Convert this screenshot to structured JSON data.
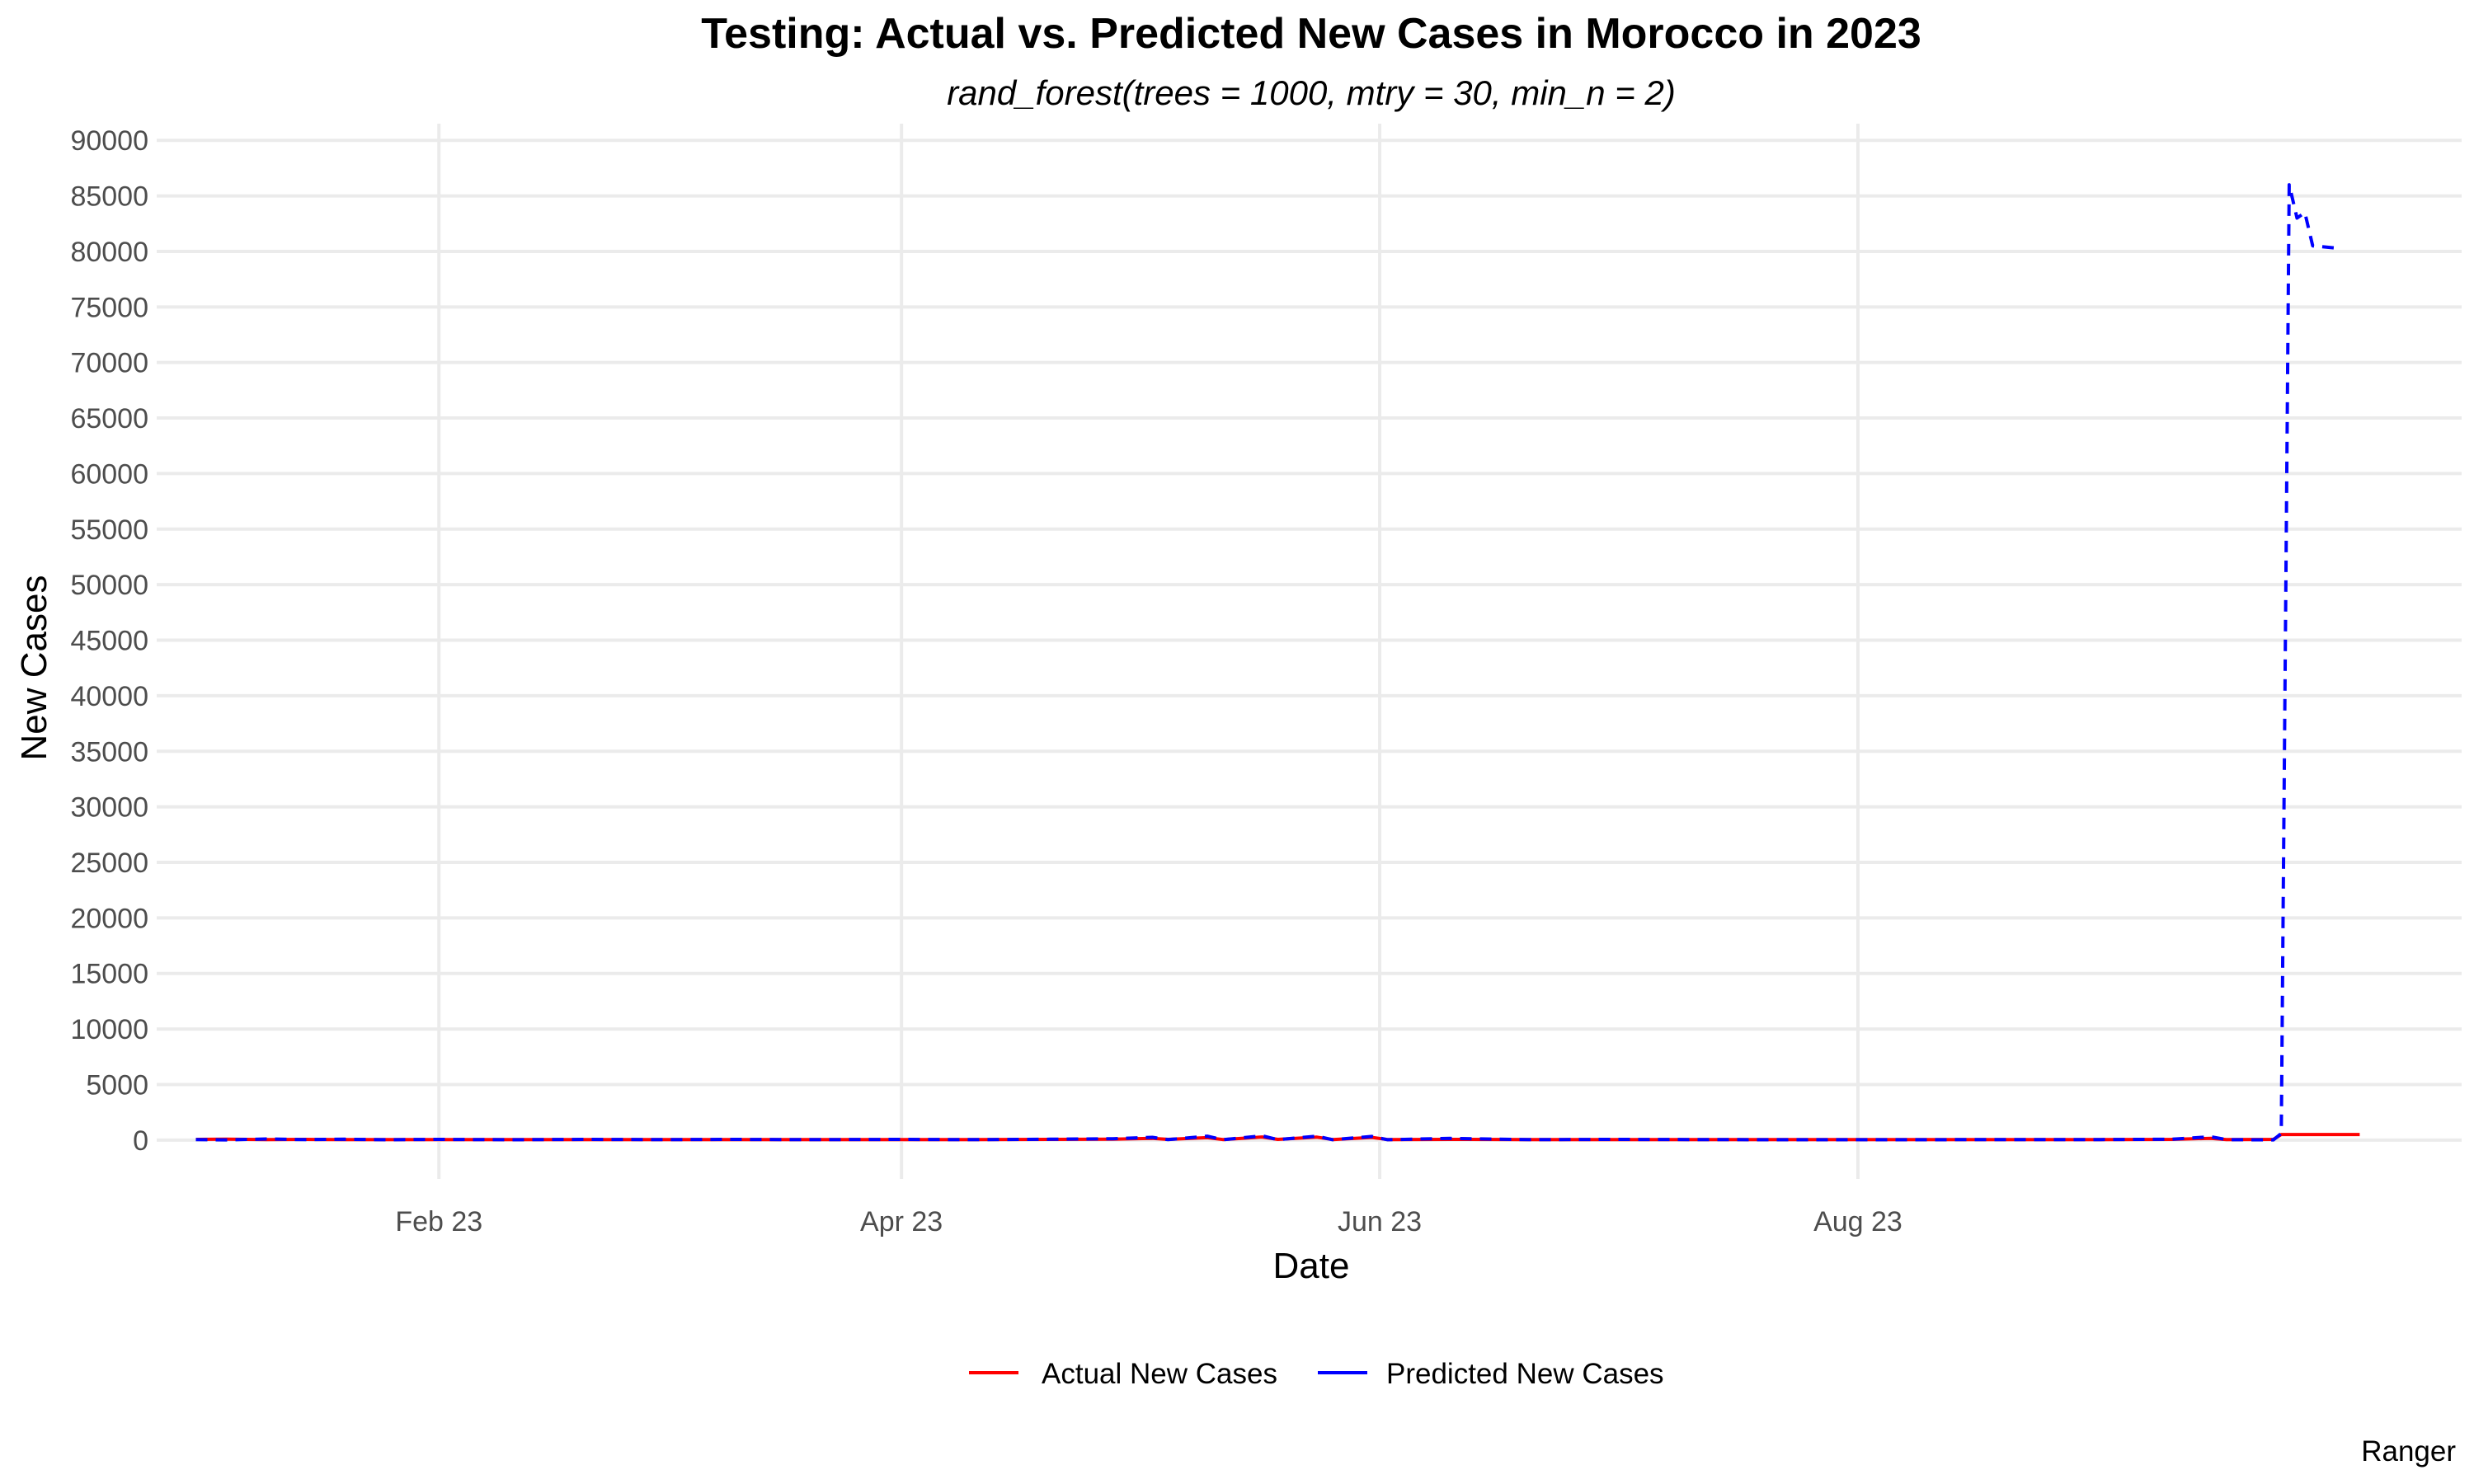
{
  "chart_data": {
    "type": "line",
    "title": "Testing: Actual vs. Predicted New Cases in Morocco in 2023",
    "subtitle": "rand_forest(trees = 1000, mtry = 30, min_n = 2)",
    "xlabel": "Date",
    "ylabel": "New Cases",
    "caption": "Ranger",
    "x_ticks": [
      {
        "date": "2023-02-01",
        "label": "Feb 23"
      },
      {
        "date": "2023-04-01",
        "label": "Apr 23"
      },
      {
        "date": "2023-06-01",
        "label": "Jun 23"
      },
      {
        "date": "2023-08-01",
        "label": "Aug 23"
      }
    ],
    "xlim": [
      "2022-12-27",
      "2023-10-17"
    ],
    "ylim": [
      -3500,
      91500
    ],
    "y_ticks": [
      0,
      5000,
      10000,
      15000,
      20000,
      25000,
      30000,
      35000,
      40000,
      45000,
      50000,
      55000,
      60000,
      65000,
      70000,
      75000,
      80000,
      85000,
      90000
    ],
    "grid": true,
    "legend_position": "bottom",
    "colors": {
      "actual": "#ff0000",
      "predicted": "#0000ff"
    },
    "series": [
      {
        "name": "Actual New Cases",
        "color": "#ff0000",
        "dashed": false,
        "points": [
          [
            "2023-01-01",
            60
          ],
          [
            "2023-01-05",
            80
          ],
          [
            "2023-01-10",
            50
          ],
          [
            "2023-01-15",
            60
          ],
          [
            "2023-01-20",
            40
          ],
          [
            "2023-01-25",
            50
          ],
          [
            "2023-02-01",
            40
          ],
          [
            "2023-02-10",
            50
          ],
          [
            "2023-02-20",
            40
          ],
          [
            "2023-03-01",
            50
          ],
          [
            "2023-03-10",
            40
          ],
          [
            "2023-03-20",
            50
          ],
          [
            "2023-04-01",
            40
          ],
          [
            "2023-04-10",
            50
          ],
          [
            "2023-04-20",
            60
          ],
          [
            "2023-04-28",
            80
          ],
          [
            "2023-05-03",
            150
          ],
          [
            "2023-05-05",
            60
          ],
          [
            "2023-05-10",
            220
          ],
          [
            "2023-05-12",
            50
          ],
          [
            "2023-05-17",
            280
          ],
          [
            "2023-05-19",
            60
          ],
          [
            "2023-05-24",
            260
          ],
          [
            "2023-05-26",
            50
          ],
          [
            "2023-05-31",
            240
          ],
          [
            "2023-06-02",
            50
          ],
          [
            "2023-06-10",
            60
          ],
          [
            "2023-06-20",
            50
          ],
          [
            "2023-07-01",
            40
          ],
          [
            "2023-07-15",
            50
          ],
          [
            "2023-08-01",
            40
          ],
          [
            "2023-08-15",
            50
          ],
          [
            "2023-09-01",
            50
          ],
          [
            "2023-09-10",
            60
          ],
          [
            "2023-09-15",
            160
          ],
          [
            "2023-09-17",
            50
          ],
          [
            "2023-09-23",
            60
          ],
          [
            "2023-09-24",
            500
          ],
          [
            "2023-10-01",
            500
          ],
          [
            "2023-10-04",
            500
          ]
        ]
      },
      {
        "name": "Predicted New Cases",
        "color": "#0000ff",
        "dashed": true,
        "points": [
          [
            "2023-01-01",
            50
          ],
          [
            "2023-01-05",
            20
          ],
          [
            "2023-01-10",
            100
          ],
          [
            "2023-01-15",
            40
          ],
          [
            "2023-01-20",
            80
          ],
          [
            "2023-01-25",
            30
          ],
          [
            "2023-02-01",
            60
          ],
          [
            "2023-02-10",
            30
          ],
          [
            "2023-02-20",
            60
          ],
          [
            "2023-03-01",
            40
          ],
          [
            "2023-03-10",
            60
          ],
          [
            "2023-03-20",
            40
          ],
          [
            "2023-04-01",
            60
          ],
          [
            "2023-04-10",
            40
          ],
          [
            "2023-04-20",
            80
          ],
          [
            "2023-04-28",
            120
          ],
          [
            "2023-05-03",
            250
          ],
          [
            "2023-05-05",
            40
          ],
          [
            "2023-05-10",
            350
          ],
          [
            "2023-05-12",
            30
          ],
          [
            "2023-05-17",
            380
          ],
          [
            "2023-05-19",
            40
          ],
          [
            "2023-05-24",
            350
          ],
          [
            "2023-05-26",
            30
          ],
          [
            "2023-05-31",
            330
          ],
          [
            "2023-06-02",
            30
          ],
          [
            "2023-06-10",
            150
          ],
          [
            "2023-06-20",
            40
          ],
          [
            "2023-07-01",
            60
          ],
          [
            "2023-07-15",
            40
          ],
          [
            "2023-08-01",
            30
          ],
          [
            "2023-08-15",
            40
          ],
          [
            "2023-09-01",
            50
          ],
          [
            "2023-09-10",
            80
          ],
          [
            "2023-09-15",
            300
          ],
          [
            "2023-09-17",
            40
          ],
          [
            "2023-09-23",
            20
          ],
          [
            "2023-09-24",
            600
          ],
          [
            "2023-09-25",
            86000
          ],
          [
            "2023-09-26",
            83000
          ],
          [
            "2023-09-27",
            83500
          ],
          [
            "2023-09-28",
            80500
          ],
          [
            "2023-10-01",
            80300
          ]
        ]
      }
    ]
  }
}
